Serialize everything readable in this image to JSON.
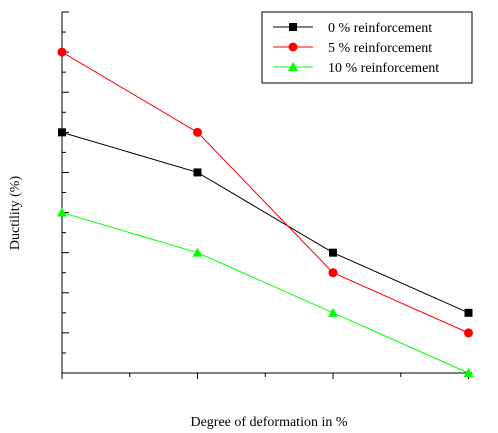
{
  "chart_data": {
    "type": "line",
    "title": "",
    "xlabel": "Degree of deformation in %",
    "ylabel": "Ductility (%)",
    "x": [
      0,
      1,
      2,
      3
    ],
    "xlim": [
      0,
      3.2
    ],
    "ylim": [
      0,
      18
    ],
    "tick_labels_visible": false,
    "grid": false,
    "legend_position": "top-right",
    "series": [
      {
        "name": "0 % reinforcement",
        "color": "#000000",
        "marker": "square",
        "values": [
          12,
          10,
          6,
          3
        ]
      },
      {
        "name": "5 % reinforcement",
        "color": "#ff0000",
        "marker": "circle",
        "values": [
          16,
          12,
          5,
          2
        ]
      },
      {
        "name": "10 % reinforcement",
        "color": "#00ff00",
        "marker": "triangle",
        "values": [
          8,
          6,
          3,
          0
        ]
      }
    ]
  }
}
